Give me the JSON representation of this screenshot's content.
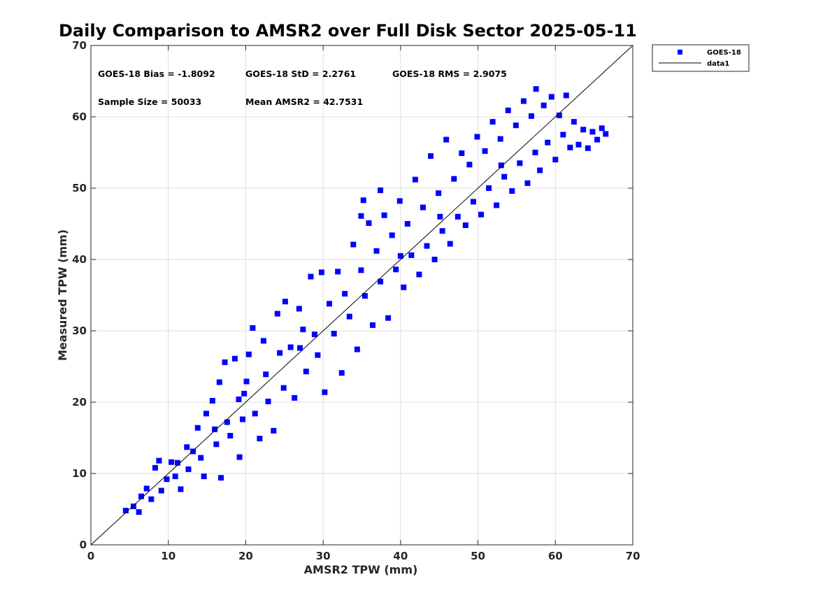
{
  "chart_data": {
    "type": "scatter",
    "title": "Daily Comparison to AMSR2 over Full Disk Sector 2025-05-11",
    "xlabel": "AMSR2 TPW (mm)",
    "ylabel": "Measured TPW (mm)",
    "xlim": [
      0,
      70
    ],
    "ylim": [
      0,
      70
    ],
    "xticks": [
      0,
      10,
      20,
      30,
      40,
      50,
      60,
      70
    ],
    "yticks": [
      0,
      10,
      20,
      30,
      40,
      50,
      60,
      70
    ],
    "grid": true,
    "legend_position": "outside-top-right",
    "stats": {
      "bias": "GOES-18 Bias = -1.8092",
      "std": "GOES-18 StD = 2.2761",
      "rms": "GOES-18 RMS = 2.9075",
      "sample_size": "Sample Size = 50033",
      "mean": "Mean AMSR2 = 42.7531"
    },
    "series": [
      {
        "name": "GOES-18",
        "marker": "square",
        "color": "#0000ff",
        "points": [
          [
            4.5,
            4.8
          ],
          [
            5.5,
            5.4
          ],
          [
            6.2,
            4.6
          ],
          [
            6.5,
            6.8
          ],
          [
            7.2,
            7.9
          ],
          [
            7.8,
            6.4
          ],
          [
            8.3,
            10.8
          ],
          [
            8.8,
            11.8
          ],
          [
            9.1,
            7.6
          ],
          [
            9.8,
            9.2
          ],
          [
            10.4,
            11.6
          ],
          [
            10.9,
            9.6
          ],
          [
            11.6,
            7.8
          ],
          [
            12.4,
            13.7
          ],
          [
            12.6,
            10.6
          ],
          [
            13.2,
            13.1
          ],
          [
            13.8,
            16.4
          ],
          [
            14.2,
            12.2
          ],
          [
            14.6,
            9.6
          ],
          [
            14.9,
            18.4
          ],
          [
            15.7,
            20.2
          ],
          [
            16.2,
            14.1
          ],
          [
            16.6,
            22.8
          ],
          [
            16.8,
            9.4
          ],
          [
            17.3,
            25.6
          ],
          [
            17.6,
            17.2
          ],
          [
            18.0,
            15.3
          ],
          [
            18.6,
            26.1
          ],
          [
            19.1,
            20.4
          ],
          [
            19.2,
            12.3
          ],
          [
            19.6,
            17.6
          ],
          [
            20.1,
            22.9
          ],
          [
            20.4,
            26.7
          ],
          [
            20.9,
            30.4
          ],
          [
            21.2,
            18.4
          ],
          [
            21.8,
            14.9
          ],
          [
            22.3,
            28.6
          ],
          [
            22.9,
            20.1
          ],
          [
            23.6,
            16.0
          ],
          [
            24.1,
            32.4
          ],
          [
            24.4,
            26.9
          ],
          [
            24.9,
            22.0
          ],
          [
            25.1,
            34.1
          ],
          [
            25.8,
            27.7
          ],
          [
            26.3,
            20.6
          ],
          [
            26.9,
            33.1
          ],
          [
            27.4,
            30.2
          ],
          [
            27.8,
            24.3
          ],
          [
            28.4,
            37.6
          ],
          [
            28.9,
            29.5
          ],
          [
            29.3,
            26.6
          ],
          [
            29.8,
            38.2
          ],
          [
            30.2,
            21.4
          ],
          [
            30.8,
            33.8
          ],
          [
            31.4,
            29.6
          ],
          [
            31.9,
            38.3
          ],
          [
            32.4,
            24.1
          ],
          [
            32.8,
            35.2
          ],
          [
            33.4,
            32.0
          ],
          [
            33.9,
            42.1
          ],
          [
            34.4,
            27.4
          ],
          [
            34.9,
            38.5
          ],
          [
            35.4,
            34.9
          ],
          [
            35.9,
            45.1
          ],
          [
            36.4,
            30.8
          ],
          [
            36.9,
            41.2
          ],
          [
            37.4,
            36.9
          ],
          [
            37.9,
            46.2
          ],
          [
            38.4,
            31.8
          ],
          [
            38.9,
            43.4
          ],
          [
            39.4,
            38.6
          ],
          [
            39.9,
            48.2
          ],
          [
            40.4,
            36.1
          ],
          [
            40.9,
            45.0
          ],
          [
            41.4,
            40.6
          ],
          [
            41.9,
            51.2
          ],
          [
            42.4,
            37.9
          ],
          [
            42.9,
            47.3
          ],
          [
            43.4,
            41.9
          ],
          [
            43.9,
            54.5
          ],
          [
            44.4,
            40.0
          ],
          [
            44.9,
            49.3
          ],
          [
            45.4,
            44.0
          ],
          [
            45.9,
            56.8
          ],
          [
            46.4,
            42.2
          ],
          [
            46.9,
            51.3
          ],
          [
            47.4,
            46.0
          ],
          [
            47.9,
            54.9
          ],
          [
            48.4,
            44.8
          ],
          [
            48.9,
            53.3
          ],
          [
            49.4,
            48.1
          ],
          [
            49.9,
            57.2
          ],
          [
            50.4,
            46.3
          ],
          [
            50.9,
            55.2
          ],
          [
            51.4,
            50.0
          ],
          [
            51.9,
            59.3
          ],
          [
            52.4,
            47.6
          ],
          [
            52.9,
            56.9
          ],
          [
            53.4,
            51.6
          ],
          [
            53.9,
            60.9
          ],
          [
            54.4,
            49.6
          ],
          [
            54.9,
            58.8
          ],
          [
            55.4,
            53.5
          ],
          [
            55.9,
            62.2
          ],
          [
            56.4,
            50.7
          ],
          [
            56.9,
            60.1
          ],
          [
            57.4,
            55.0
          ],
          [
            57.5,
            63.9
          ],
          [
            58.0,
            52.5
          ],
          [
            58.5,
            61.6
          ],
          [
            59.0,
            56.4
          ],
          [
            59.5,
            62.8
          ],
          [
            60.0,
            54.0
          ],
          [
            60.5,
            60.2
          ],
          [
            61.0,
            57.5
          ],
          [
            61.4,
            63.0
          ],
          [
            61.9,
            55.7
          ],
          [
            62.4,
            59.3
          ],
          [
            63.0,
            56.1
          ],
          [
            63.6,
            58.2
          ],
          [
            64.2,
            55.6
          ],
          [
            64.8,
            57.9
          ],
          [
            65.4,
            56.8
          ],
          [
            66.0,
            58.4
          ],
          [
            66.5,
            57.6
          ],
          [
            19.8,
            21.2
          ],
          [
            34.9,
            46.1
          ],
          [
            37.4,
            49.7
          ],
          [
            35.2,
            48.3
          ],
          [
            22.6,
            23.9
          ],
          [
            16.0,
            16.2
          ],
          [
            11.2,
            11.5
          ],
          [
            45.1,
            46.0
          ],
          [
            53.0,
            53.2
          ],
          [
            27.0,
            27.6
          ],
          [
            40.0,
            40.5
          ]
        ]
      }
    ],
    "reference_line": {
      "name": "data1",
      "color": "#000000",
      "x": [
        0,
        70
      ],
      "y": [
        0,
        70
      ]
    }
  }
}
